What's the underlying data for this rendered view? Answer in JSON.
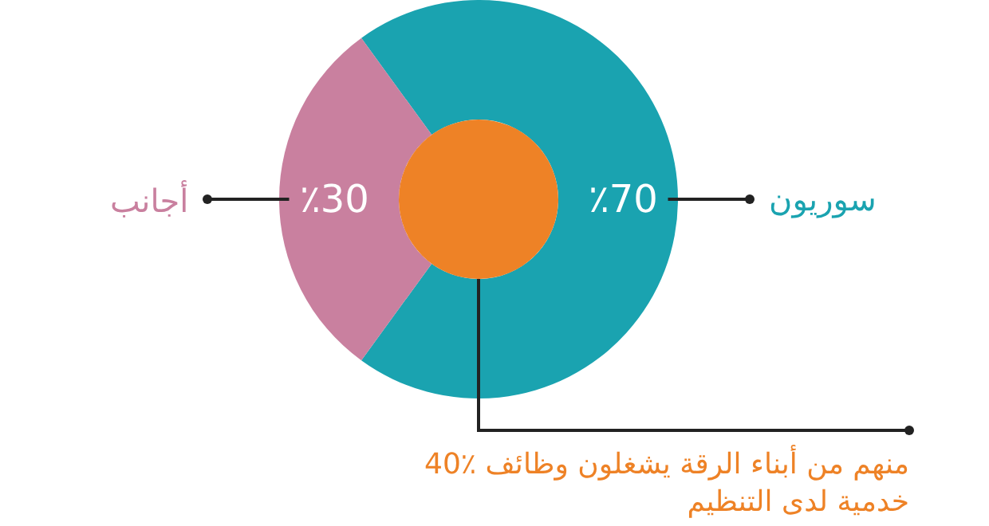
{
  "chart_data": {
    "type": "donut",
    "categories": [
      "سوريون",
      "أجانب"
    ],
    "values": [
      70,
      30
    ],
    "colors": [
      "#1aa3b0",
      "#c9809f"
    ],
    "value_labels": [
      "٪70",
      "٪30"
    ],
    "annotations": [
      "40٪ منهم من أبناء الرقة يشغلون وظائف\nخدمية لدى التنظيم"
    ],
    "legend": false
  }
}
